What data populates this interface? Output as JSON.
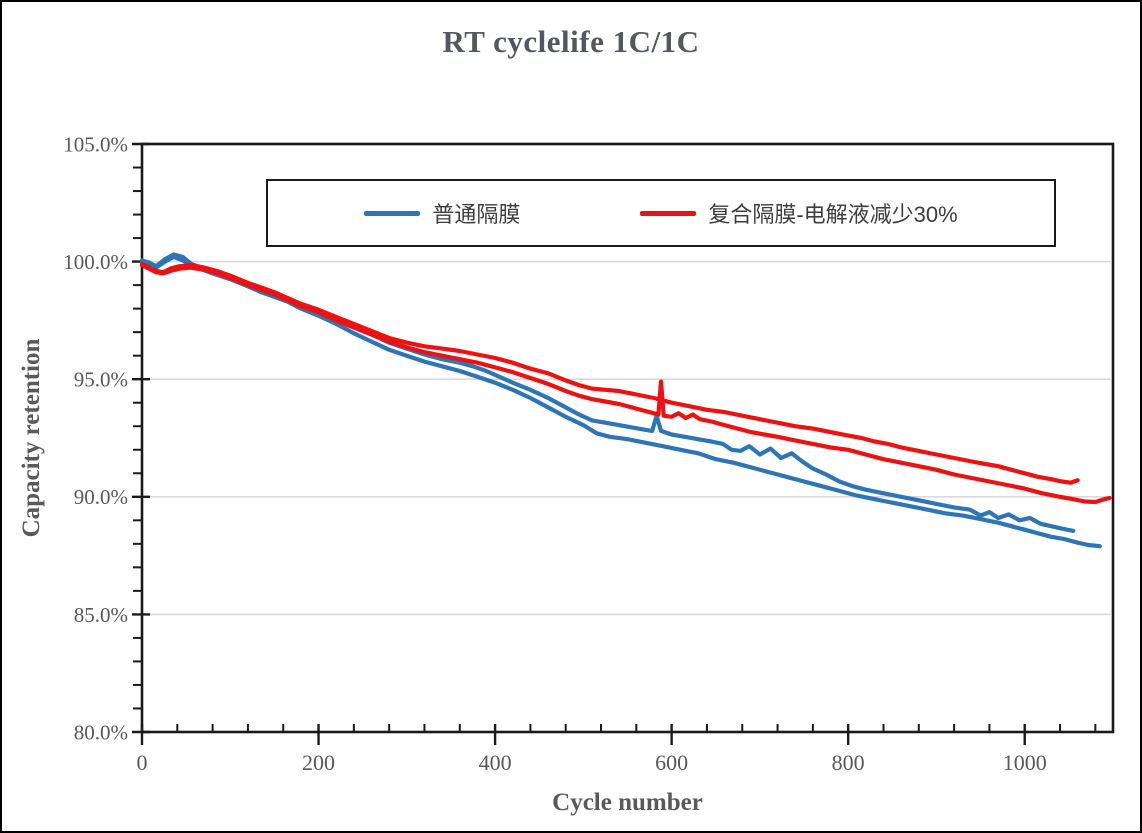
{
  "chart_data": {
    "type": "line",
    "title": "RT cyclelife 1C/1C",
    "axes": {
      "x": {
        "label": "Cycle number",
        "min": 0,
        "max": 1100,
        "major_ticks": [
          0,
          200,
          400,
          600,
          800,
          1000
        ],
        "tick_labels": [
          "0",
          "200",
          "400",
          "600",
          "800",
          "1000"
        ],
        "minor_step": 40
      },
      "y": {
        "label": "Capacity retention",
        "min": 80,
        "max": 105,
        "major_ticks": [
          105,
          100,
          95,
          90,
          85,
          80
        ],
        "tick_labels": [
          "105.0%",
          "100.0%",
          "95.0%",
          "90.0%",
          "85.0%",
          "80.0%"
        ],
        "minor_step": 1
      }
    },
    "grid": {
      "horizontal_at": [
        100,
        95,
        90,
        85
      ],
      "color": "#d9d9d9"
    },
    "palette": {
      "frame": "#1a1a1a",
      "tick_text": "#595959",
      "title_text": "#54575e",
      "background": "#ffffff",
      "blue": "#2e75b6",
      "red": "#ee1111"
    },
    "legend": {
      "position": "top-inside",
      "entries": [
        {
          "label": "普通隔膜",
          "color": "#2e75b6"
        },
        {
          "label": "复合隔膜-电解液减少30%",
          "color": "#ee1111"
        }
      ]
    },
    "series": [
      {
        "id": "ordinary-separator-cell-1",
        "legend": "普通隔膜",
        "color": "#2e75b6",
        "points": [
          [
            0,
            100.05
          ],
          [
            8,
            99.95
          ],
          [
            16,
            99.8
          ],
          [
            26,
            100.1
          ],
          [
            36,
            100.3
          ],
          [
            46,
            100.2
          ],
          [
            56,
            99.9
          ],
          [
            66,
            99.75
          ],
          [
            80,
            99.6
          ],
          [
            100,
            99.35
          ],
          [
            120,
            99.05
          ],
          [
            135,
            98.85
          ],
          [
            150,
            98.65
          ],
          [
            165,
            98.45
          ],
          [
            180,
            98.2
          ],
          [
            200,
            97.95
          ],
          [
            220,
            97.6
          ],
          [
            240,
            97.25
          ],
          [
            260,
            96.9
          ],
          [
            280,
            96.55
          ],
          [
            300,
            96.3
          ],
          [
            320,
            96.05
          ],
          [
            340,
            95.85
          ],
          [
            360,
            95.7
          ],
          [
            375,
            95.55
          ],
          [
            390,
            95.35
          ],
          [
            405,
            95.1
          ],
          [
            420,
            94.85
          ],
          [
            440,
            94.55
          ],
          [
            460,
            94.2
          ],
          [
            480,
            93.8
          ],
          [
            495,
            93.5
          ],
          [
            510,
            93.25
          ],
          [
            525,
            93.15
          ],
          [
            540,
            93.05
          ],
          [
            555,
            92.95
          ],
          [
            570,
            92.85
          ],
          [
            578,
            92.8
          ],
          [
            583,
            93.45
          ],
          [
            588,
            92.8
          ],
          [
            600,
            92.65
          ],
          [
            615,
            92.55
          ],
          [
            630,
            92.45
          ],
          [
            645,
            92.35
          ],
          [
            658,
            92.25
          ],
          [
            668,
            92.0
          ],
          [
            678,
            91.95
          ],
          [
            688,
            92.15
          ],
          [
            700,
            91.8
          ],
          [
            712,
            92.05
          ],
          [
            724,
            91.65
          ],
          [
            736,
            91.85
          ],
          [
            748,
            91.5
          ],
          [
            760,
            91.2
          ],
          [
            775,
            90.95
          ],
          [
            790,
            90.65
          ],
          [
            805,
            90.45
          ],
          [
            820,
            90.3
          ],
          [
            840,
            90.15
          ],
          [
            860,
            90.0
          ],
          [
            880,
            89.85
          ],
          [
            900,
            89.7
          ],
          [
            920,
            89.55
          ],
          [
            938,
            89.45
          ],
          [
            950,
            89.2
          ],
          [
            960,
            89.35
          ],
          [
            970,
            89.1
          ],
          [
            982,
            89.25
          ],
          [
            994,
            89.0
          ],
          [
            1006,
            89.1
          ],
          [
            1018,
            88.85
          ],
          [
            1030,
            88.75
          ],
          [
            1042,
            88.65
          ],
          [
            1055,
            88.55
          ]
        ]
      },
      {
        "id": "ordinary-separator-cell-2",
        "legend": "普通隔膜",
        "color": "#2e75b6",
        "points": [
          [
            0,
            100.0
          ],
          [
            8,
            99.9
          ],
          [
            16,
            99.75
          ],
          [
            26,
            100.0
          ],
          [
            36,
            100.2
          ],
          [
            46,
            100.05
          ],
          [
            56,
            99.85
          ],
          [
            66,
            99.7
          ],
          [
            80,
            99.5
          ],
          [
            100,
            99.25
          ],
          [
            120,
            98.95
          ],
          [
            135,
            98.7
          ],
          [
            150,
            98.5
          ],
          [
            165,
            98.3
          ],
          [
            180,
            98.0
          ],
          [
            200,
            97.7
          ],
          [
            220,
            97.35
          ],
          [
            240,
            96.95
          ],
          [
            260,
            96.6
          ],
          [
            280,
            96.25
          ],
          [
            300,
            96.0
          ],
          [
            320,
            95.75
          ],
          [
            340,
            95.55
          ],
          [
            360,
            95.35
          ],
          [
            380,
            95.1
          ],
          [
            400,
            94.85
          ],
          [
            420,
            94.55
          ],
          [
            440,
            94.2
          ],
          [
            460,
            93.8
          ],
          [
            480,
            93.4
          ],
          [
            500,
            93.05
          ],
          [
            515,
            92.7
          ],
          [
            530,
            92.55
          ],
          [
            550,
            92.45
          ],
          [
            570,
            92.3
          ],
          [
            590,
            92.15
          ],
          [
            610,
            92.0
          ],
          [
            630,
            91.85
          ],
          [
            650,
            91.6
          ],
          [
            670,
            91.45
          ],
          [
            690,
            91.25
          ],
          [
            710,
            91.05
          ],
          [
            730,
            90.85
          ],
          [
            750,
            90.65
          ],
          [
            770,
            90.45
          ],
          [
            790,
            90.25
          ],
          [
            810,
            90.05
          ],
          [
            830,
            89.9
          ],
          [
            850,
            89.75
          ],
          [
            870,
            89.6
          ],
          [
            890,
            89.45
          ],
          [
            910,
            89.3
          ],
          [
            930,
            89.2
          ],
          [
            950,
            89.05
          ],
          [
            970,
            88.9
          ],
          [
            985,
            88.75
          ],
          [
            1000,
            88.6
          ],
          [
            1015,
            88.45
          ],
          [
            1030,
            88.3
          ],
          [
            1045,
            88.2
          ],
          [
            1060,
            88.05
          ],
          [
            1072,
            87.95
          ],
          [
            1085,
            87.9
          ]
        ]
      },
      {
        "id": "composite-separator-cell-1",
        "legend": "复合隔膜-电解液减少30%",
        "color": "#ee1111",
        "points": [
          [
            0,
            99.9
          ],
          [
            8,
            99.75
          ],
          [
            16,
            99.6
          ],
          [
            24,
            99.55
          ],
          [
            32,
            99.7
          ],
          [
            42,
            99.8
          ],
          [
            55,
            99.85
          ],
          [
            70,
            99.75
          ],
          [
            85,
            99.6
          ],
          [
            100,
            99.4
          ],
          [
            120,
            99.1
          ],
          [
            135,
            98.9
          ],
          [
            150,
            98.7
          ],
          [
            165,
            98.45
          ],
          [
            180,
            98.2
          ],
          [
            200,
            97.95
          ],
          [
            220,
            97.65
          ],
          [
            240,
            97.35
          ],
          [
            260,
            97.05
          ],
          [
            280,
            96.75
          ],
          [
            300,
            96.55
          ],
          [
            320,
            96.4
          ],
          [
            340,
            96.3
          ],
          [
            360,
            96.2
          ],
          [
            380,
            96.05
          ],
          [
            400,
            95.9
          ],
          [
            420,
            95.7
          ],
          [
            440,
            95.45
          ],
          [
            460,
            95.25
          ],
          [
            480,
            94.95
          ],
          [
            495,
            94.75
          ],
          [
            510,
            94.6
          ],
          [
            525,
            94.55
          ],
          [
            540,
            94.5
          ],
          [
            560,
            94.35
          ],
          [
            580,
            94.2
          ],
          [
            600,
            94.0
          ],
          [
            620,
            93.85
          ],
          [
            640,
            93.7
          ],
          [
            660,
            93.6
          ],
          [
            680,
            93.45
          ],
          [
            700,
            93.3
          ],
          [
            720,
            93.15
          ],
          [
            740,
            93.0
          ],
          [
            760,
            92.9
          ],
          [
            780,
            92.75
          ],
          [
            800,
            92.6
          ],
          [
            815,
            92.5
          ],
          [
            830,
            92.35
          ],
          [
            845,
            92.25
          ],
          [
            860,
            92.1
          ],
          [
            880,
            91.95
          ],
          [
            900,
            91.8
          ],
          [
            920,
            91.65
          ],
          [
            940,
            91.5
          ],
          [
            955,
            91.4
          ],
          [
            970,
            91.3
          ],
          [
            985,
            91.15
          ],
          [
            1000,
            91.0
          ],
          [
            1015,
            90.85
          ],
          [
            1030,
            90.75
          ],
          [
            1042,
            90.65
          ],
          [
            1052,
            90.6
          ],
          [
            1060,
            90.7
          ]
        ]
      },
      {
        "id": "composite-separator-cell-2",
        "legend": "复合隔膜-电解液减少30%",
        "color": "#ee1111",
        "points": [
          [
            0,
            99.85
          ],
          [
            8,
            99.7
          ],
          [
            16,
            99.55
          ],
          [
            24,
            99.5
          ],
          [
            32,
            99.6
          ],
          [
            42,
            99.7
          ],
          [
            55,
            99.75
          ],
          [
            70,
            99.65
          ],
          [
            85,
            99.5
          ],
          [
            100,
            99.3
          ],
          [
            120,
            99.0
          ],
          [
            135,
            98.8
          ],
          [
            150,
            98.6
          ],
          [
            165,
            98.35
          ],
          [
            180,
            98.1
          ],
          [
            200,
            97.85
          ],
          [
            220,
            97.5
          ],
          [
            240,
            97.2
          ],
          [
            260,
            96.9
          ],
          [
            280,
            96.6
          ],
          [
            300,
            96.35
          ],
          [
            320,
            96.15
          ],
          [
            340,
            96.0
          ],
          [
            360,
            95.85
          ],
          [
            380,
            95.7
          ],
          [
            400,
            95.5
          ],
          [
            420,
            95.3
          ],
          [
            440,
            95.05
          ],
          [
            460,
            94.8
          ],
          [
            480,
            94.5
          ],
          [
            495,
            94.3
          ],
          [
            510,
            94.15
          ],
          [
            525,
            94.05
          ],
          [
            540,
            93.95
          ],
          [
            555,
            93.8
          ],
          [
            570,
            93.65
          ],
          [
            580,
            93.55
          ],
          [
            585,
            93.5
          ],
          [
            588,
            94.9
          ],
          [
            591,
            93.45
          ],
          [
            600,
            93.4
          ],
          [
            608,
            93.55
          ],
          [
            616,
            93.35
          ],
          [
            624,
            93.5
          ],
          [
            632,
            93.3
          ],
          [
            645,
            93.2
          ],
          [
            660,
            93.05
          ],
          [
            675,
            92.9
          ],
          [
            690,
            92.75
          ],
          [
            705,
            92.65
          ],
          [
            720,
            92.55
          ],
          [
            740,
            92.4
          ],
          [
            760,
            92.25
          ],
          [
            780,
            92.1
          ],
          [
            800,
            92.0
          ],
          [
            820,
            91.8
          ],
          [
            840,
            91.6
          ],
          [
            860,
            91.45
          ],
          [
            880,
            91.3
          ],
          [
            900,
            91.15
          ],
          [
            920,
            90.95
          ],
          [
            940,
            90.8
          ],
          [
            960,
            90.65
          ],
          [
            980,
            90.5
          ],
          [
            1000,
            90.35
          ],
          [
            1020,
            90.15
          ],
          [
            1040,
            90.0
          ],
          [
            1055,
            89.9
          ],
          [
            1068,
            89.8
          ],
          [
            1080,
            89.78
          ],
          [
            1090,
            89.9
          ],
          [
            1096,
            89.95
          ]
        ]
      }
    ]
  }
}
